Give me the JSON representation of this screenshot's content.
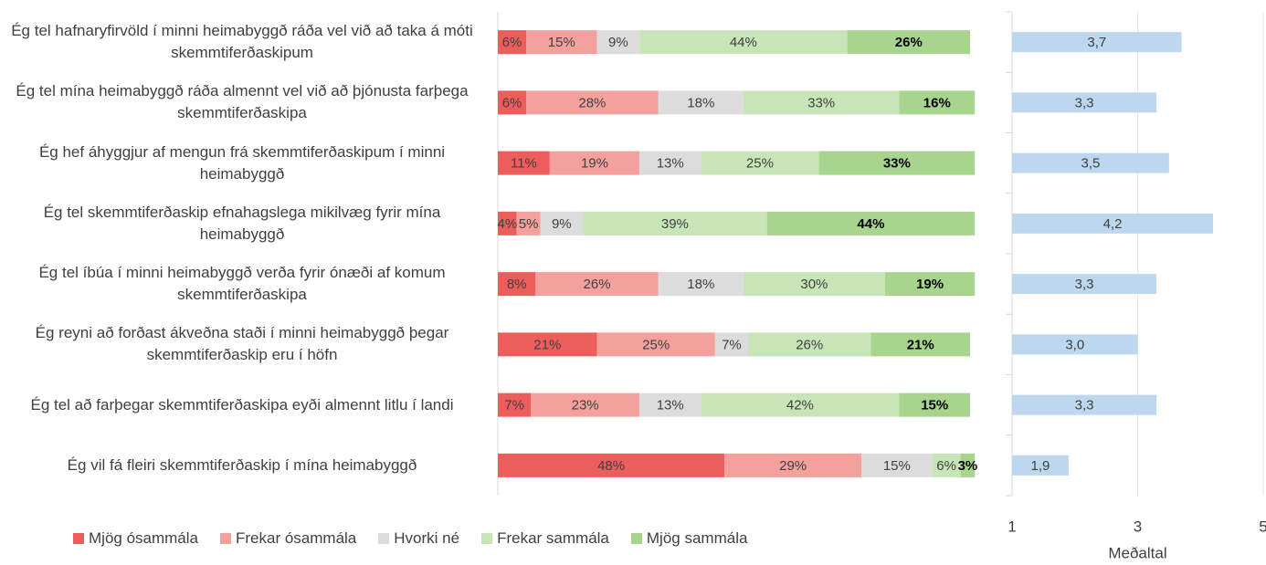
{
  "chart_data": [
    {
      "type": "stacked_bar",
      "categories": [
        "Ég tel hafnaryfirvöld í minni heimabyggð ráða vel við að taka á móti skemmtiferðaskipum",
        "Ég tel mína heimabyggð ráða almennt vel við að þjónusta farþega skemmtiferðaskipa",
        "Ég hef áhyggjur af mengun frá skemmtiferðaskipum í minni heimabyggð",
        "Ég tel skemmtiferðaskip efnahagslega mikilvæg fyrir mína heimabyggð",
        "Ég tel íbúa í minni heimabyggð verða fyrir ónæði af komum skemmtiferðaskipa",
        "Ég reyni að forðast ákveðna staði í minni heimabyggð þegar skemmtiferðaskip eru í höfn",
        "Ég tel að farþegar skemmtiferðaskipa eyði almennt litlu í landi",
        "Ég vil fá fleiri skemmtiferðaskip í mína heimabyggð"
      ],
      "series": [
        {
          "name": "Mjög ósammála",
          "color": "#ec5e5c",
          "values": [
            6,
            6,
            11,
            4,
            8,
            21,
            7,
            48
          ],
          "value_labels": [
            "6%",
            "6%",
            "11%",
            "4%",
            "8%",
            "21%",
            "7%",
            "48%"
          ]
        },
        {
          "name": "Frekar ósammála",
          "color": "#f4a09d",
          "values": [
            15,
            28,
            19,
            5,
            26,
            25,
            23,
            29
          ],
          "value_labels": [
            "15%",
            "28%",
            "19%",
            "5%",
            "26%",
            "25%",
            "23%",
            "29%"
          ]
        },
        {
          "name": "Hvorki né",
          "color": "#dcdcdc",
          "values": [
            9,
            18,
            13,
            9,
            18,
            7,
            13,
            15
          ],
          "value_labels": [
            "9%",
            "18%",
            "13%",
            "9%",
            "18%",
            "7%",
            "13%",
            "15%"
          ]
        },
        {
          "name": "Frekar sammála",
          "color": "#c7e5b7",
          "values": [
            44,
            33,
            25,
            39,
            30,
            26,
            42,
            6
          ],
          "value_labels": [
            "44%",
            "33%",
            "25%",
            "39%",
            "30%",
            "26%",
            "42%",
            "6%"
          ]
        },
        {
          "name": "Mjög sammála",
          "color": "#a8d58d",
          "values": [
            26,
            16,
            33,
            44,
            19,
            21,
            15,
            3
          ],
          "value_labels": [
            "26%",
            "16%",
            "33%",
            "44%",
            "19%",
            "21%",
            "15%",
            "3%"
          ]
        }
      ],
      "xlim": [
        0,
        100
      ],
      "legend": "bottom"
    },
    {
      "type": "bar",
      "color": "#bdd7ee",
      "values": [
        3.7,
        3.3,
        3.5,
        4.2,
        3.3,
        3.0,
        3.3,
        1.9
      ],
      "value_labels": [
        "3,7",
        "3,3",
        "3,5",
        "4,2",
        "3,3",
        "3,0",
        "3,3",
        "1,9"
      ],
      "xlim": [
        1,
        5
      ],
      "xticks": [
        1,
        3,
        5
      ],
      "xlabel": "Meðaltal",
      "grid": true
    }
  ]
}
